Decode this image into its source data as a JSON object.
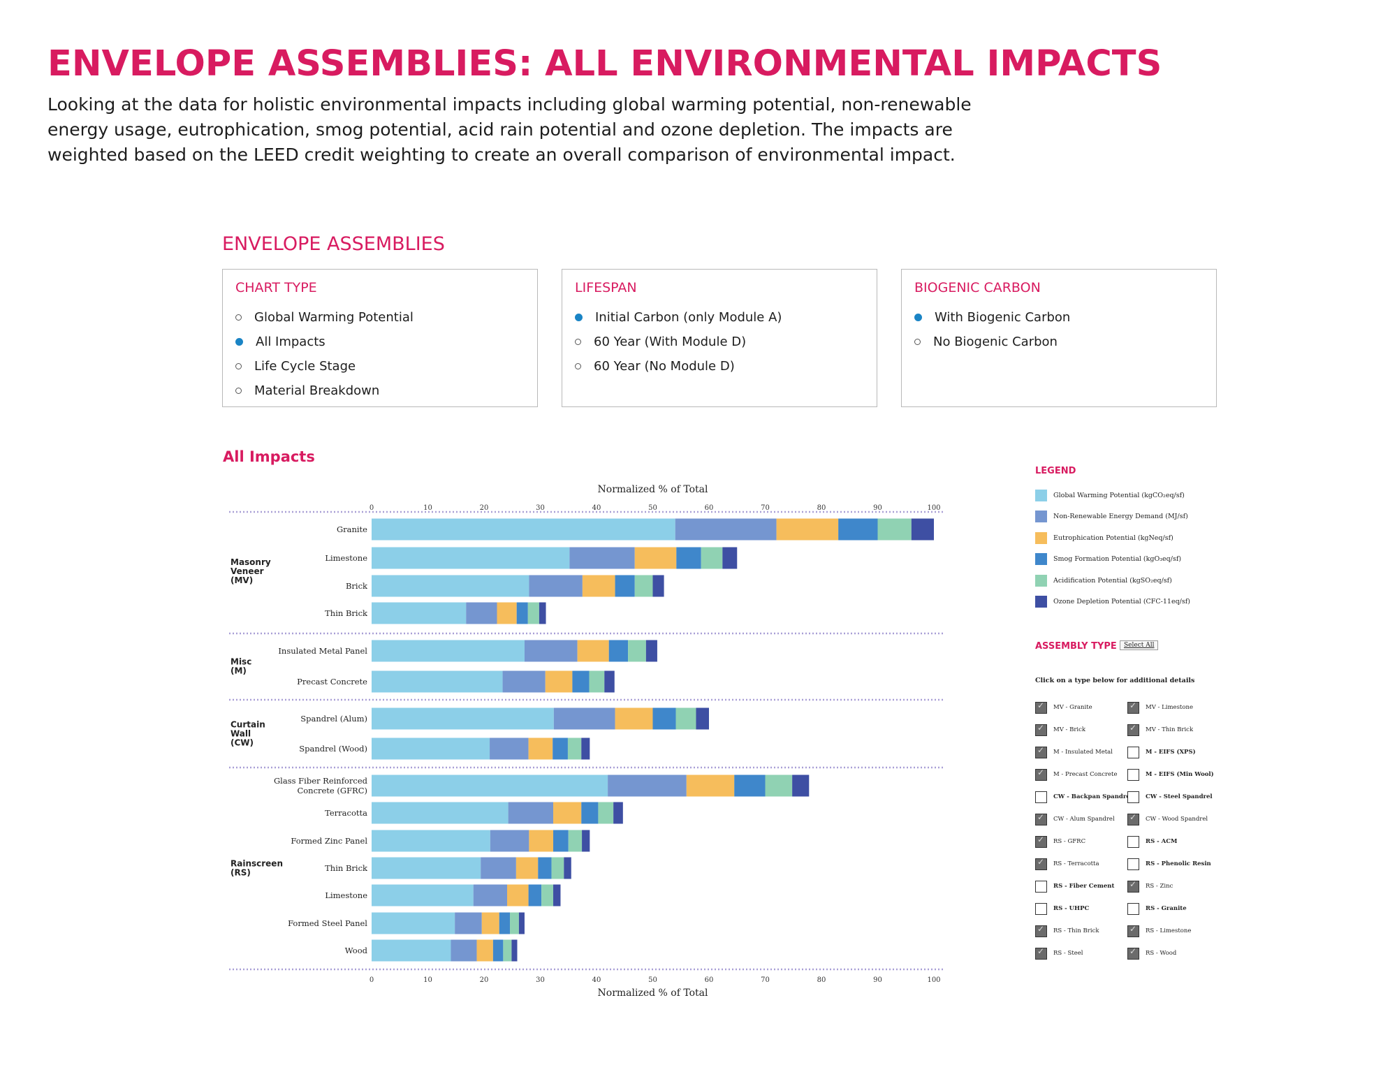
{
  "page": {
    "title": "ENVELOPE ASSEMBLIES: ALL ENVIRONMENTAL IMPACTS",
    "intro_lines": [
      "Looking at the data for holistic environmental impacts including global warming potential, non-renewable",
      "energy usage, eutrophication, smog potential, acid rain potential and ozone depletion. The impacts are",
      "weighted based on the LEED credit weighting to create an overall comparison of environmental impact."
    ],
    "section_heading": "ENVELOPE ASSEMBLIES"
  },
  "controls": {
    "chart_type": {
      "title": "CHART TYPE",
      "options": [
        {
          "label": "Global Warming Potential",
          "selected": false
        },
        {
          "label": "All Impacts",
          "selected": true
        },
        {
          "label": "Life Cycle Stage",
          "selected": false
        },
        {
          "label": "Material Breakdown",
          "selected": false
        }
      ]
    },
    "lifespan": {
      "title": "LIFESPAN",
      "options": [
        {
          "label": "Initial Carbon (only Module A)",
          "selected": true
        },
        {
          "label": "60 Year (With Module D)",
          "selected": false
        },
        {
          "label": "60 Year (No Module D)",
          "selected": false
        }
      ]
    },
    "biogenic": {
      "title": "BIOGENIC CARBON",
      "options": [
        {
          "label": "With Biogenic Carbon",
          "selected": true
        },
        {
          "label": "No Biogenic Carbon",
          "selected": false
        }
      ]
    }
  },
  "chart_heading": "All Impacts",
  "chart_data": {
    "type": "bar",
    "orientation": "horizontal",
    "stacked": true,
    "xlabel": "Normalized % of Total",
    "xlim": [
      0,
      100
    ],
    "xticks": [
      0,
      10,
      20,
      30,
      40,
      50,
      60,
      70,
      80,
      90,
      100
    ],
    "series": [
      {
        "name": "Global Warming Potential (kgCO₂eq/sf)",
        "color": "#8ccfe8"
      },
      {
        "name": "Non-Renewable Energy Demand (MJ/sf)",
        "color": "#7596d0"
      },
      {
        "name": "Eutrophication Potential (kgNeq/sf)",
        "color": "#f6bd5c"
      },
      {
        "name": "Smog Formation Potential (kgO₃eq/sf)",
        "color": "#3f87cb"
      },
      {
        "name": "Acidification Potential (kgSO₂eq/sf)",
        "color": "#90d2b3"
      },
      {
        "name": "Ozone Depletion Potential (CFC-11eq/sf)",
        "color": "#3e4fa3"
      }
    ],
    "groups": [
      {
        "label_lines": [
          "Masonry",
          "Veneer",
          "(MV)"
        ],
        "rows": [
          {
            "label_lines": [
              "Granite"
            ],
            "values": [
              54,
              18,
              11,
              7,
              6,
              4
            ]
          },
          {
            "label_lines": [
              "Limestone"
            ],
            "values": [
              35.2,
              11.6,
              7.4,
              4.4,
              3.8,
              2.6
            ]
          },
          {
            "label_lines": [
              "Brick"
            ],
            "values": [
              28,
              9.5,
              5.8,
              3.5,
              3.2,
              2
            ]
          },
          {
            "label_lines": [
              "Thin Brick"
            ],
            "values": [
              16.8,
              5.5,
              3.5,
              2,
              2,
              1.2
            ]
          }
        ]
      },
      {
        "label_lines": [
          "Misc",
          "(M)"
        ],
        "rows": [
          {
            "label_lines": [
              "Insulated Metal Panel"
            ],
            "values": [
              27.2,
              9.4,
              5.6,
              3.4,
              3.2,
              2
            ]
          },
          {
            "label_lines": [
              "Precast Concrete"
            ],
            "values": [
              23.3,
              7.6,
              4.8,
              3,
              2.7,
              1.8
            ]
          }
        ]
      },
      {
        "label_lines": [
          "Curtain",
          "Wall",
          "(CW)"
        ],
        "rows": [
          {
            "label_lines": [
              "Spandrel (Alum)"
            ],
            "values": [
              32.4,
              10.9,
              6.7,
              4.1,
              3.6,
              2.3
            ]
          },
          {
            "label_lines": [
              "Spandrel (Wood)"
            ],
            "values": [
              21,
              6.9,
              4.3,
              2.7,
              2.4,
              1.5
            ]
          }
        ]
      },
      {
        "label_lines": [
          "Rainscreen",
          "(RS)"
        ],
        "rows": [
          {
            "label_lines": [
              "Glass Fiber Reinforced",
              "Concrete (GFRC)"
            ],
            "values": [
              42,
              14,
              8.5,
              5.5,
              4.8,
              3
            ]
          },
          {
            "label_lines": [
              "Terracotta"
            ],
            "values": [
              24.3,
              8,
              5,
              3,
              2.7,
              1.7
            ]
          },
          {
            "label_lines": [
              "Formed Zinc Panel"
            ],
            "values": [
              21.1,
              6.9,
              4.3,
              2.7,
              2.4,
              1.4
            ]
          },
          {
            "label_lines": [
              "Thin Brick"
            ],
            "values": [
              19.4,
              6.3,
              3.9,
              2.4,
              2.2,
              1.3
            ]
          },
          {
            "label_lines": [
              "Limestone"
            ],
            "values": [
              18.1,
              6,
              3.8,
              2.3,
              2.1,
              1.3
            ]
          },
          {
            "label_lines": [
              "Formed Steel Panel"
            ],
            "values": [
              14.8,
              4.8,
              3.1,
              1.9,
              1.6,
              1
            ]
          },
          {
            "label_lines": [
              "Wood"
            ],
            "values": [
              14.1,
              4.6,
              2.9,
              1.8,
              1.5,
              1
            ]
          }
        ]
      }
    ],
    "legend": {
      "title": "LEGEND",
      "position": "right"
    }
  },
  "assembly_type": {
    "title": "ASSEMBLY TYPE",
    "select_all": "Select All",
    "note": "Click on a type below for additional details",
    "items": [
      {
        "label": "MV - Granite",
        "checked": true
      },
      {
        "label": "MV - Limestone",
        "checked": true
      },
      {
        "label": "MV - Brick",
        "checked": true
      },
      {
        "label": "MV - Thin Brick",
        "checked": true
      },
      {
        "label": "M - Insulated Metal",
        "checked": true
      },
      {
        "label": "M - EIFS (XPS)",
        "checked": false
      },
      {
        "label": "M - Precast Concrete",
        "checked": true
      },
      {
        "label": "M - EIFS (Min Wool)",
        "checked": false
      },
      {
        "label": "CW - Backpan Spandrel",
        "checked": false
      },
      {
        "label": "CW - Steel Spandrel",
        "checked": false
      },
      {
        "label": "CW - Alum Spandrel",
        "checked": true
      },
      {
        "label": "CW - Wood Spandrel",
        "checked": true
      },
      {
        "label": "RS - GFRC",
        "checked": true
      },
      {
        "label": "RS - ACM",
        "checked": false
      },
      {
        "label": "RS - Terracotta",
        "checked": true
      },
      {
        "label": "RS - Phenolic Resin",
        "checked": false
      },
      {
        "label": "RS - Fiber Cement",
        "checked": false
      },
      {
        "label": "RS - Zinc",
        "checked": true
      },
      {
        "label": "RS - UHPC",
        "checked": false
      },
      {
        "label": "RS - Granite",
        "checked": false
      },
      {
        "label": "RS - Thin Brick",
        "checked": true
      },
      {
        "label": "RS - Limestone",
        "checked": true
      },
      {
        "label": "RS - Steel",
        "checked": true
      },
      {
        "label": "RS - Wood",
        "checked": true
      }
    ]
  }
}
